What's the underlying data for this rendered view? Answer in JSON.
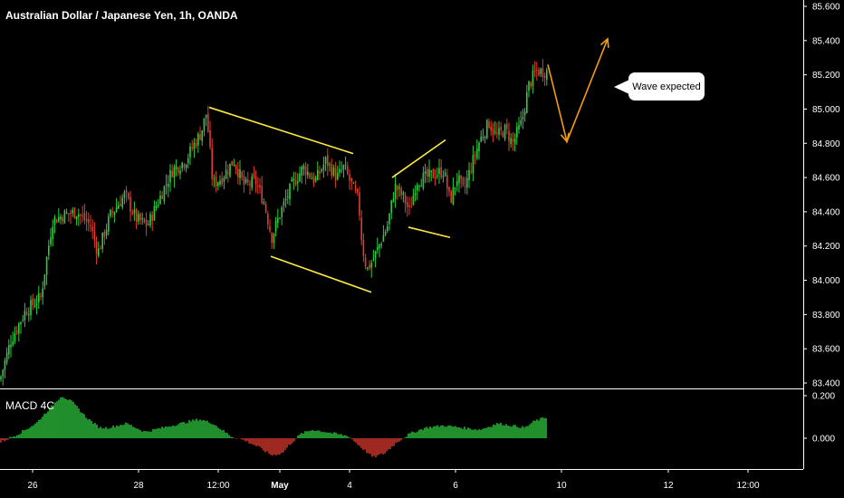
{
  "header": {
    "title": "Australian Dollar / Japanese Yen, 1h, OANDA"
  },
  "macd": {
    "title": "MACD 4C"
  },
  "callout": {
    "text": "Wave expected"
  },
  "colors": {
    "background": "#000000",
    "up": "#2ecc40",
    "down": "#e23b2e",
    "pattern": "#ffeb3b",
    "projection": "#f39c12",
    "axis": "#ffffff"
  },
  "chart_data": [
    {
      "type": "candlestick",
      "title": "Australian Dollar / Japanese Yen, 1h, OANDA",
      "y_ticks": [
        "85.600",
        "85.400",
        "85.200",
        "85.000",
        "84.800",
        "84.600",
        "84.400",
        "84.200",
        "84.000",
        "83.800",
        "83.600",
        "83.400"
      ],
      "ylim": [
        83.37,
        85.62
      ],
      "x_ticks": [
        "26",
        "28",
        "12:00",
        "May",
        "4",
        "6",
        "8",
        "10",
        "12",
        "12:00"
      ],
      "close_path": [
        [
          0,
          83.42
        ],
        [
          12,
          83.65
        ],
        [
          28,
          83.82
        ],
        [
          45,
          83.9
        ],
        [
          58,
          84.35
        ],
        [
          70,
          84.38
        ],
        [
          85,
          84.4
        ],
        [
          100,
          84.32
        ],
        [
          108,
          84.16
        ],
        [
          122,
          84.38
        ],
        [
          138,
          84.5
        ],
        [
          150,
          84.36
        ],
        [
          163,
          84.32
        ],
        [
          178,
          84.5
        ],
        [
          190,
          84.64
        ],
        [
          205,
          84.7
        ],
        [
          215,
          84.8
        ],
        [
          222,
          84.86
        ],
        [
          228,
          84.98
        ],
        [
          235,
          84.56
        ],
        [
          245,
          84.6
        ],
        [
          258,
          84.7
        ],
        [
          270,
          84.55
        ],
        [
          282,
          84.58
        ],
        [
          292,
          84.45
        ],
        [
          300,
          84.25
        ],
        [
          310,
          84.4
        ],
        [
          322,
          84.55
        ],
        [
          335,
          84.66
        ],
        [
          348,
          84.58
        ],
        [
          360,
          84.7
        ],
        [
          372,
          84.6
        ],
        [
          380,
          84.66
        ],
        [
          388,
          84.56
        ],
        [
          396,
          84.46
        ],
        [
          400,
          84.2
        ],
        [
          405,
          84.06
        ],
        [
          412,
          84.12
        ],
        [
          420,
          84.22
        ],
        [
          428,
          84.32
        ],
        [
          436,
          84.55
        ],
        [
          446,
          84.48
        ],
        [
          452,
          84.4
        ],
        [
          460,
          84.58
        ],
        [
          470,
          84.6
        ],
        [
          480,
          84.62
        ],
        [
          490,
          84.64
        ],
        [
          497,
          84.46
        ],
        [
          505,
          84.6
        ],
        [
          512,
          84.52
        ],
        [
          520,
          84.66
        ],
        [
          530,
          84.82
        ],
        [
          540,
          84.92
        ],
        [
          548,
          84.84
        ],
        [
          558,
          84.88
        ],
        [
          566,
          84.8
        ],
        [
          576,
          84.92
        ],
        [
          584,
          85.14
        ],
        [
          592,
          85.22
        ],
        [
          604,
          85.22
        ]
      ],
      "patterns": [
        {
          "type": "descending channel upper",
          "points": [
            [
              231,
              85.01
            ],
            [
              390,
              84.74
            ]
          ]
        },
        {
          "type": "descending channel lower",
          "points": [
            [
              299,
              84.14
            ],
            [
              410,
              83.93
            ]
          ]
        },
        {
          "type": "flag upper",
          "points": [
            [
              433,
              84.6
            ],
            [
              492,
              84.82
            ]
          ]
        },
        {
          "type": "flag lower",
          "points": [
            [
              451,
              84.31
            ],
            [
              497,
              84.25
            ]
          ]
        }
      ],
      "projection": {
        "points": [
          [
            605,
            85.26
          ],
          [
            626,
            84.81
          ],
          [
            671,
            85.41
          ]
        ],
        "label": "Wave expected"
      }
    },
    {
      "type": "histogram",
      "title": "MACD 4C",
      "y_ticks": [
        "0.200",
        "0.000"
      ],
      "ylim": [
        -0.2,
        0.22
      ],
      "zero": 0.0,
      "path": [
        [
          0,
          -0.02
        ],
        [
          20,
          0.02
        ],
        [
          40,
          0.07
        ],
        [
          55,
          0.14
        ],
        [
          68,
          0.2
        ],
        [
          80,
          0.17
        ],
        [
          95,
          0.1
        ],
        [
          110,
          0.05
        ],
        [
          120,
          0.05
        ],
        [
          140,
          0.07
        ],
        [
          160,
          0.03
        ],
        [
          180,
          0.05
        ],
        [
          200,
          0.07
        ],
        [
          220,
          0.09
        ],
        [
          235,
          0.07
        ],
        [
          255,
          0.01
        ],
        [
          270,
          -0.01
        ],
        [
          285,
          -0.04
        ],
        [
          300,
          -0.08
        ],
        [
          312,
          -0.07
        ],
        [
          320,
          -0.03
        ],
        [
          332,
          0.02
        ],
        [
          345,
          0.04
        ],
        [
          360,
          0.03
        ],
        [
          372,
          0.02
        ],
        [
          385,
          0.01
        ],
        [
          398,
          -0.04
        ],
        [
          412,
          -0.09
        ],
        [
          425,
          -0.07
        ],
        [
          438,
          -0.02
        ],
        [
          452,
          0.02
        ],
        [
          470,
          0.05
        ],
        [
          490,
          0.06
        ],
        [
          510,
          0.05
        ],
        [
          530,
          0.04
        ],
        [
          550,
          0.07
        ],
        [
          565,
          0.06
        ],
        [
          580,
          0.05
        ],
        [
          590,
          0.08
        ],
        [
          604,
          0.1
        ]
      ]
    }
  ]
}
